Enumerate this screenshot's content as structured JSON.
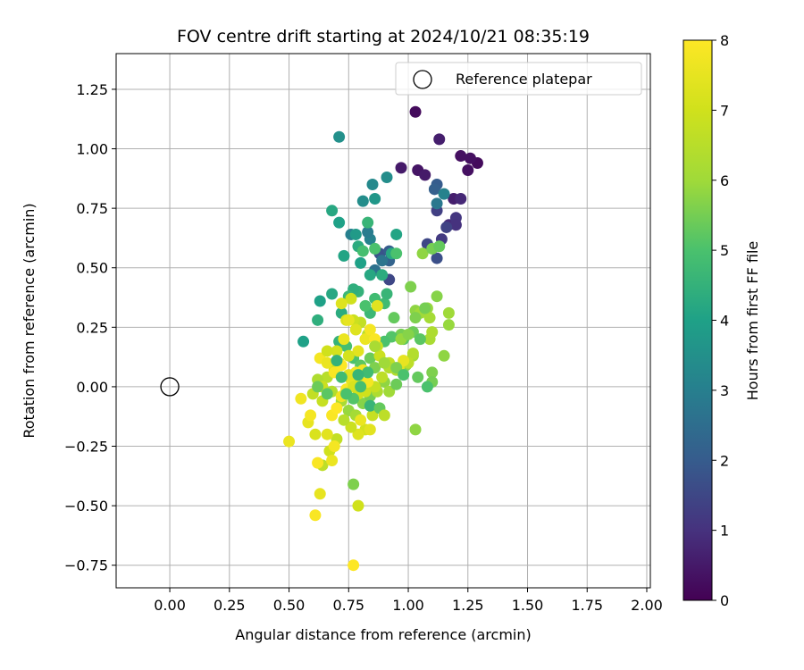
{
  "chart_data": {
    "type": "scatter",
    "title": "FOV centre drift starting at 2024/10/21 08:35:19",
    "xlabel": "Angular distance from reference (arcmin)",
    "ylabel": "Rotation from reference (arcmin)",
    "xlim": [
      -0.225,
      2.015
    ],
    "ylim": [
      -0.845,
      1.4
    ],
    "xticks": [
      0.0,
      0.25,
      0.5,
      0.75,
      1.0,
      1.25,
      1.5,
      1.75,
      2.0
    ],
    "xtick_labels": [
      "0.00",
      "0.25",
      "0.50",
      "0.75",
      "1.00",
      "1.25",
      "1.50",
      "1.75",
      "2.00"
    ],
    "yticks": [
      -0.75,
      -0.5,
      -0.25,
      0.0,
      0.25,
      0.5,
      0.75,
      1.0,
      1.25
    ],
    "ytick_labels": [
      "−0.75",
      "−0.50",
      "−0.25",
      "0.00",
      "0.25",
      "0.50",
      "0.75",
      "1.00",
      "1.25"
    ],
    "grid": true,
    "legend": {
      "label": "Reference platepar",
      "placement": "top-right"
    },
    "reference_point": {
      "x": 0.0,
      "y": 0.0
    },
    "colorbar": {
      "label": "Hours from first FF file",
      "min": 0,
      "max": 8,
      "ticks": [
        0,
        1,
        2,
        3,
        4,
        5,
        6,
        7,
        8
      ],
      "colormap": "viridis"
    },
    "series": [
      {
        "points": [
          [
            1.03,
            1.155,
            0.2
          ],
          [
            1.29,
            0.94,
            0.2
          ],
          [
            1.25,
            0.91,
            0.3
          ],
          [
            1.22,
            0.97,
            0.3
          ],
          [
            1.26,
            0.96,
            0.3
          ],
          [
            0.97,
            0.92,
            0.5
          ],
          [
            1.04,
            0.91,
            0.4
          ],
          [
            1.07,
            0.89,
            0.5
          ],
          [
            1.13,
            1.04,
            0.6
          ],
          [
            1.19,
            0.79,
            0.6
          ],
          [
            1.22,
            0.79,
            0.8
          ],
          [
            1.17,
            0.68,
            0.9
          ],
          [
            1.2,
            0.71,
            1.1
          ],
          [
            1.12,
            0.74,
            1.3
          ],
          [
            1.14,
            0.62,
            1.2
          ],
          [
            1.2,
            0.68,
            1.0
          ],
          [
            1.08,
            0.6,
            1.5
          ],
          [
            1.12,
            0.54,
            1.7
          ],
          [
            1.16,
            0.67,
            1.4
          ],
          [
            1.12,
            0.85,
            2.0
          ],
          [
            1.11,
            0.83,
            2.1
          ],
          [
            0.92,
            0.45,
            1.5
          ],
          [
            0.88,
            0.56,
            1.8
          ],
          [
            0.92,
            0.53,
            2.2
          ],
          [
            0.92,
            0.57,
            2.0
          ],
          [
            0.86,
            0.49,
            2.6
          ],
          [
            0.89,
            0.53,
            2.7
          ],
          [
            1.12,
            0.77,
            2.8
          ],
          [
            1.15,
            0.81,
            3.1
          ],
          [
            0.76,
            0.64,
            3.0
          ],
          [
            0.84,
            0.62,
            3.1
          ],
          [
            0.83,
            0.65,
            2.9
          ],
          [
            0.71,
            1.05,
            3.5
          ],
          [
            0.81,
            0.78,
            3.4
          ],
          [
            0.85,
            0.85,
            3.3
          ],
          [
            0.91,
            0.88,
            3.4
          ],
          [
            0.86,
            0.79,
            3.7
          ],
          [
            0.68,
            0.74,
            4.2
          ],
          [
            0.71,
            0.69,
            4.0
          ],
          [
            0.73,
            0.55,
            4.1
          ],
          [
            0.79,
            0.59,
            4.3
          ],
          [
            0.78,
            0.64,
            3.8
          ],
          [
            0.8,
            0.52,
            4.0
          ],
          [
            0.84,
            0.47,
            4.2
          ],
          [
            0.89,
            0.47,
            4.3
          ],
          [
            0.93,
            0.56,
            4.2
          ],
          [
            0.95,
            0.64,
            4.1
          ],
          [
            0.83,
            0.69,
            4.6
          ],
          [
            0.81,
            0.57,
            4.9
          ],
          [
            0.86,
            0.58,
            5.0
          ],
          [
            0.95,
            0.56,
            5.0
          ],
          [
            1.06,
            0.56,
            5.8
          ],
          [
            1.1,
            0.58,
            5.5
          ],
          [
            1.13,
            0.59,
            5.3
          ],
          [
            1.01,
            0.42,
            5.6
          ],
          [
            1.12,
            0.38,
            5.7
          ],
          [
            1.03,
            0.32,
            5.8
          ],
          [
            1.08,
            0.33,
            5.9
          ],
          [
            1.05,
            0.31,
            6.0
          ],
          [
            1.09,
            0.29,
            6.1
          ],
          [
            1.17,
            0.31,
            6.0
          ],
          [
            1.17,
            0.26,
            5.9
          ],
          [
            1.15,
            0.13,
            5.8
          ],
          [
            1.1,
            0.06,
            5.6
          ],
          [
            1.1,
            0.02,
            5.5
          ],
          [
            1.04,
            0.04,
            5.3
          ],
          [
            1.02,
            0.23,
            5.4
          ],
          [
            0.98,
            0.2,
            5.2
          ],
          [
            0.97,
            0.22,
            5.5
          ],
          [
            0.93,
            0.21,
            5.1
          ],
          [
            0.9,
            0.19,
            5.0
          ],
          [
            0.94,
            0.29,
            5.3
          ],
          [
            0.9,
            0.35,
            4.8
          ],
          [
            0.91,
            0.39,
            4.6
          ],
          [
            0.86,
            0.37,
            4.8
          ],
          [
            0.84,
            0.31,
            4.7
          ],
          [
            0.82,
            0.34,
            5.0
          ],
          [
            0.79,
            0.4,
            4.5
          ],
          [
            0.77,
            0.41,
            4.4
          ],
          [
            0.75,
            0.38,
            4.7
          ],
          [
            0.72,
            0.31,
            4.3
          ],
          [
            0.68,
            0.39,
            4.2
          ],
          [
            0.63,
            0.36,
            4.0
          ],
          [
            0.62,
            0.28,
            4.4
          ],
          [
            0.56,
            0.19,
            4.0
          ],
          [
            0.71,
            0.19,
            4.5
          ],
          [
            0.74,
            0.17,
            4.9
          ],
          [
            0.77,
            0.12,
            5.0
          ],
          [
            0.8,
            0.09,
            5.2
          ],
          [
            0.84,
            0.12,
            5.4
          ],
          [
            0.86,
            0.08,
            5.6
          ],
          [
            0.9,
            0.02,
            5.8
          ],
          [
            0.92,
            -0.02,
            6.0
          ],
          [
            0.95,
            0.01,
            5.4
          ],
          [
            0.99,
            0.09,
            5.7
          ],
          [
            1.02,
            0.13,
            6.1
          ],
          [
            1.09,
            0.2,
            6.2
          ],
          [
            1.1,
            0.23,
            6.3
          ],
          [
            1.02,
            0.14,
            6.4
          ],
          [
            1.03,
            -0.18,
            5.8
          ],
          [
            1.08,
            0.0,
            5.0
          ],
          [
            1.0,
            0.1,
            6.6
          ],
          [
            0.95,
            0.07,
            6.4
          ],
          [
            0.92,
            0.1,
            6.7
          ],
          [
            0.88,
            0.13,
            6.9
          ],
          [
            0.87,
            0.17,
            6.8
          ],
          [
            0.83,
            0.22,
            6.5
          ],
          [
            0.8,
            0.27,
            6.7
          ],
          [
            0.77,
            0.28,
            6.9
          ],
          [
            0.74,
            0.28,
            7.2
          ],
          [
            0.76,
            0.37,
            7.0
          ],
          [
            0.78,
            0.24,
            7.3
          ],
          [
            0.82,
            0.2,
            7.6
          ],
          [
            0.84,
            0.24,
            7.8
          ],
          [
            0.79,
            0.15,
            7.4
          ],
          [
            0.75,
            0.13,
            7.1
          ],
          [
            0.71,
            0.1,
            6.8
          ],
          [
            0.69,
            0.07,
            7.0
          ],
          [
            0.66,
            0.04,
            6.5
          ],
          [
            0.62,
            0.03,
            6.3
          ],
          [
            0.64,
            0.0,
            6.9
          ],
          [
            0.68,
            -0.02,
            6.4
          ],
          [
            0.72,
            -0.06,
            6.2
          ],
          [
            0.75,
            -0.1,
            5.9
          ],
          [
            0.78,
            -0.12,
            6.1
          ],
          [
            0.81,
            -0.07,
            5.7
          ],
          [
            0.84,
            -0.04,
            5.5
          ],
          [
            0.87,
            -0.02,
            6.3
          ],
          [
            0.85,
            -0.12,
            6.8
          ],
          [
            0.82,
            -0.18,
            7.1
          ],
          [
            0.79,
            -0.2,
            7.3
          ],
          [
            0.76,
            -0.17,
            6.9
          ],
          [
            0.73,
            -0.14,
            6.5
          ],
          [
            0.7,
            -0.22,
            6.7
          ],
          [
            0.67,
            -0.27,
            7.0
          ],
          [
            0.64,
            -0.33,
            6.6
          ],
          [
            0.61,
            -0.2,
            7.2
          ],
          [
            0.58,
            -0.15,
            7.5
          ],
          [
            0.55,
            -0.05,
            7.7
          ],
          [
            0.5,
            -0.23,
            7.6
          ],
          [
            0.59,
            -0.12,
            7.8
          ],
          [
            0.62,
            -0.32,
            7.9
          ],
          [
            0.63,
            -0.45,
            7.5
          ],
          [
            0.61,
            -0.54,
            7.9
          ],
          [
            0.77,
            -0.41,
            5.6
          ],
          [
            0.79,
            -0.5,
            7.0
          ],
          [
            0.77,
            -0.75,
            8.0
          ],
          [
            0.68,
            -0.31,
            7.6
          ],
          [
            0.69,
            -0.25,
            7.8
          ],
          [
            0.66,
            -0.2,
            7.4
          ],
          [
            0.68,
            -0.12,
            7.9
          ],
          [
            0.7,
            -0.09,
            8.0
          ],
          [
            0.72,
            -0.04,
            7.7
          ],
          [
            0.74,
            -0.01,
            7.9
          ],
          [
            0.76,
            0.03,
            7.5
          ],
          [
            0.78,
            0.06,
            7.8
          ],
          [
            0.8,
            0.02,
            7.2
          ],
          [
            0.82,
            -0.02,
            7.0
          ],
          [
            0.86,
            0.0,
            6.8
          ],
          [
            0.89,
            0.04,
            6.6
          ],
          [
            0.92,
            0.08,
            6.4
          ],
          [
            0.96,
            0.08,
            7.3
          ],
          [
            0.98,
            0.11,
            7.5
          ],
          [
            0.63,
            0.12,
            7.8
          ],
          [
            0.66,
            0.1,
            7.6
          ],
          [
            0.69,
            0.06,
            7.9
          ],
          [
            0.72,
            0.09,
            8.0
          ],
          [
            0.75,
            0.05,
            7.4
          ],
          [
            0.77,
            0.0,
            7.2
          ],
          [
            0.79,
            -0.03,
            7.0
          ],
          [
            0.81,
            0.07,
            7.7
          ],
          [
            0.83,
            0.02,
            7.8
          ],
          [
            0.73,
            0.2,
            7.6
          ],
          [
            0.72,
            0.35,
            7.3
          ],
          [
            0.75,
            0.28,
            7.5
          ],
          [
            0.86,
            0.2,
            7.9
          ],
          [
            0.87,
            0.34,
            7.4
          ],
          [
            0.7,
            0.15,
            7.1
          ],
          [
            0.66,
            0.15,
            7.0
          ],
          [
            0.64,
            -0.06,
            6.8
          ],
          [
            0.6,
            -0.03,
            6.7
          ],
          [
            0.84,
            -0.18,
            7.4
          ],
          [
            0.8,
            -0.14,
            7.6
          ],
          [
            0.86,
            0.17,
            6.2
          ],
          [
            0.9,
            0.1,
            6.0
          ],
          [
            0.97,
            0.2,
            5.9
          ],
          [
            1.0,
            0.22,
            5.7
          ],
          [
            1.03,
            0.29,
            5.6
          ],
          [
            1.07,
            0.33,
            5.5
          ],
          [
            1.05,
            0.2,
            5.2
          ],
          [
            0.83,
            0.06,
            4.8
          ],
          [
            0.79,
            0.05,
            4.6
          ],
          [
            0.77,
            -0.05,
            5.1
          ],
          [
            0.8,
            0.0,
            4.9
          ],
          [
            0.84,
            -0.08,
            4.6
          ],
          [
            0.88,
            -0.09,
            5.3
          ],
          [
            0.9,
            -0.12,
            6.6
          ],
          [
            0.95,
            0.08,
            5.6
          ],
          [
            0.98,
            0.05,
            5.0
          ],
          [
            0.7,
            0.11,
            4.5
          ],
          [
            0.72,
            0.04,
            4.8
          ],
          [
            0.74,
            -0.03,
            5.0
          ],
          [
            0.66,
            -0.03,
            5.2
          ],
          [
            0.62,
            0.0,
            5.4
          ]
        ]
      }
    ]
  }
}
